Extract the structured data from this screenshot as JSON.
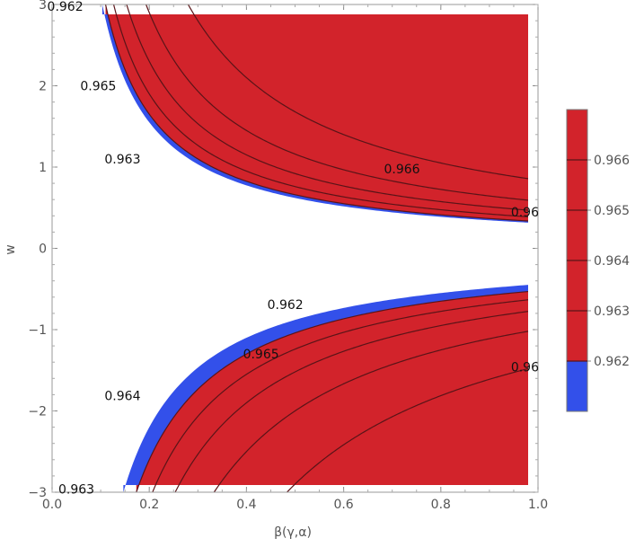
{
  "chart_data": {
    "type": "contour",
    "xlabel": "β(γ,α)",
    "ylabel": "w",
    "xlim": [
      0,
      1
    ],
    "ylim": [
      -3,
      3
    ],
    "x_ticks": [
      {
        "value": 0,
        "label": "0.0"
      },
      {
        "value": 0.2,
        "label": "0.2"
      },
      {
        "value": 0.4,
        "label": "0.4"
      },
      {
        "value": 0.6,
        "label": "0.6"
      },
      {
        "value": 0.8,
        "label": "0.8"
      },
      {
        "value": 1,
        "label": "1.0"
      }
    ],
    "y_ticks": [
      {
        "value": -3,
        "label": "−3"
      },
      {
        "value": -2,
        "label": "−2"
      },
      {
        "value": -1,
        "label": "−1"
      },
      {
        "value": 0,
        "label": "0"
      },
      {
        "value": 1,
        "label": "1"
      },
      {
        "value": 2,
        "label": "2"
      },
      {
        "value": 3,
        "label": "3"
      }
    ],
    "colors": {
      "high": "#d2232b",
      "low": "#3350ea",
      "contour": "#5a1418",
      "frame": "#999999"
    },
    "regions": [
      {
        "name": "upper",
        "sign": 1,
        "boundary_k": 0.31
      },
      {
        "name": "lower",
        "sign": -1,
        "boundary_k": 0.44
      }
    ],
    "contours_upper": [
      {
        "level": 0.962,
        "k": 0.33
      },
      {
        "level": 0.963,
        "k": 0.38
      },
      {
        "level": 0.964,
        "k": 0.46
      },
      {
        "level": 0.965,
        "k": 0.58
      },
      {
        "level": 0.966,
        "k": 0.84
      }
    ],
    "contours_lower": [
      {
        "level": 0.962,
        "k": 0.52
      },
      {
        "level": 0.963,
        "k": 0.62
      },
      {
        "level": 0.964,
        "k": 0.76
      },
      {
        "level": 0.965,
        "k": 1.0
      },
      {
        "level": 0.966,
        "k": 1.45
      }
    ],
    "contour_labels": [
      {
        "text": "0.962",
        "x": 0.027,
        "y": 2.98
      },
      {
        "text": "0.965",
        "x": 0.095,
        "y": 2.0
      },
      {
        "text": "0.963",
        "x": 0.145,
        "y": 1.1
      },
      {
        "text": "0.966",
        "x": 0.72,
        "y": 0.98
      },
      {
        "text": "0.96",
        "x": 0.995,
        "y": 0.45
      },
      {
        "text": "0.962",
        "x": 0.48,
        "y": -0.69
      },
      {
        "text": "0.965",
        "x": 0.43,
        "y": -1.3
      },
      {
        "text": "0.96",
        "x": 0.995,
        "y": -1.46
      },
      {
        "text": "0.964",
        "x": 0.145,
        "y": -1.81
      },
      {
        "text": "0.963",
        "x": 0.05,
        "y": -2.96
      }
    ],
    "legend": {
      "placement": "right",
      "range": [
        0.961,
        0.967
      ],
      "split_value": 0.962,
      "ticks": [
        "0.962",
        "0.963",
        "0.964",
        "0.965",
        "0.966"
      ]
    }
  }
}
